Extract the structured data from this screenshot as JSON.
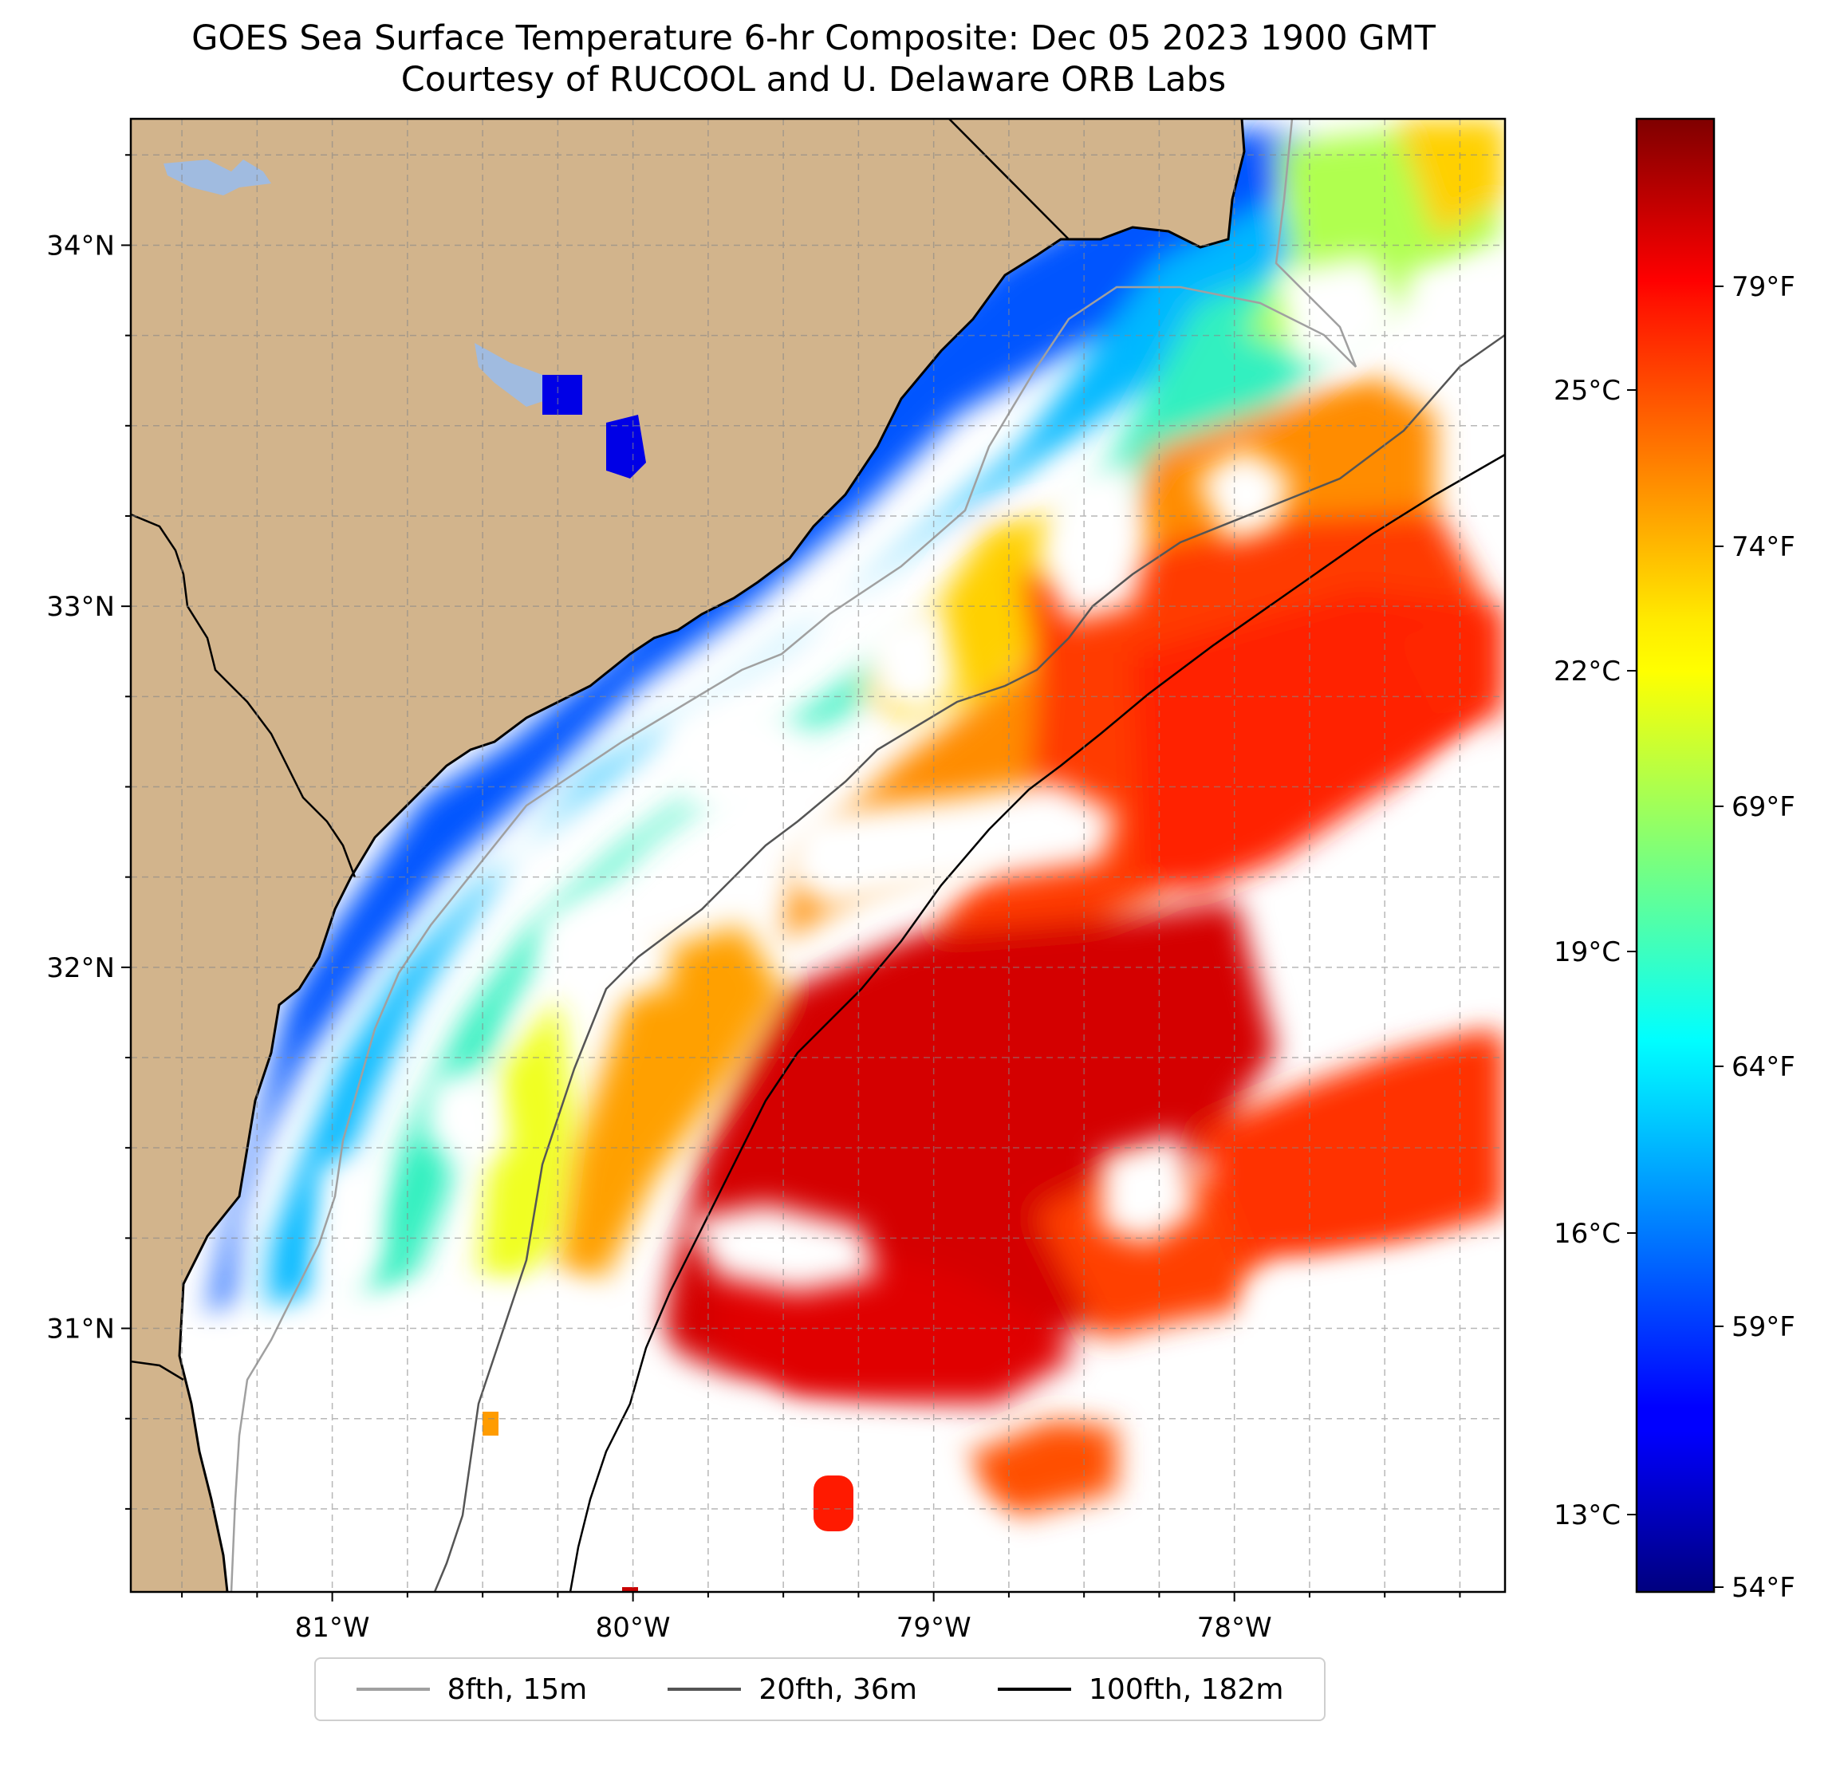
{
  "title": {
    "line1": "GOES Sea Surface Temperature 6-hr Composite: Dec 05 2023 1900 GMT",
    "line2": "Courtesy of RUCOOL and U. Delaware ORB Labs"
  },
  "map": {
    "lon_range": [
      -81.67,
      -77.1
    ],
    "lat_range": [
      30.27,
      34.35
    ],
    "land_color": "#d2b48c",
    "lake_color": "#a0bbe0",
    "x_ticks": [
      {
        "value": -81,
        "label": "81°W"
      },
      {
        "value": -80,
        "label": "80°W"
      },
      {
        "value": -79,
        "label": "79°W"
      },
      {
        "value": -78,
        "label": "78°W"
      }
    ],
    "y_ticks": [
      {
        "value": 31,
        "label": "31°N"
      },
      {
        "value": 32,
        "label": "32°N"
      },
      {
        "value": 33,
        "label": "33°N"
      },
      {
        "value": 34,
        "label": "34°N"
      }
    ],
    "gridlines": true
  },
  "colorbar": {
    "colormap": "jet",
    "celsius_ticks": [
      "13°C",
      "16°C",
      "19°C",
      "22°C",
      "25°C"
    ],
    "fahrenheit_ticks": [
      "54°F",
      "59°F",
      "64°F",
      "69°F",
      "74°F",
      "79°F"
    ]
  },
  "legend": {
    "items": [
      {
        "label": "8fth, 15m",
        "color": "#a0a0a0"
      },
      {
        "label": "20fth, 36m",
        "color": "#555555"
      },
      {
        "label": "100fth, 182m",
        "color": "#000000"
      }
    ]
  }
}
